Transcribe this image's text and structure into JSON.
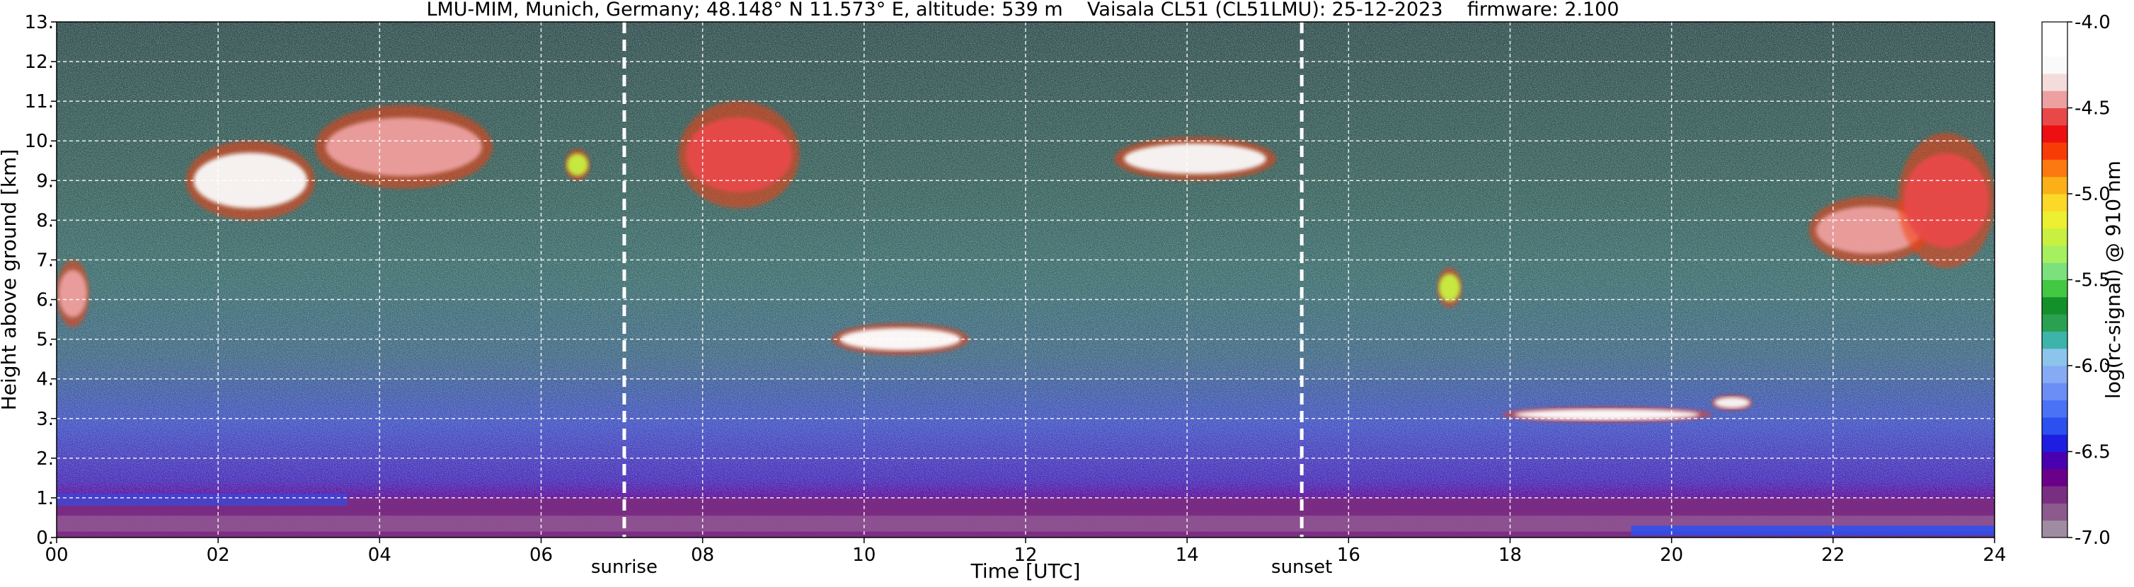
{
  "chart_data": {
    "type": "heatmap",
    "title": "LMU-MIM, Munich, Germany; 48.148° N 11.573° E, altitude: 539 m    Vaisala CL51 (CL51LMU): 25-12-2023    firmware: 2.100",
    "xlabel": "Time [UTC]",
    "ylabel": "Height above ground [km]",
    "xlim": [
      0,
      24
    ],
    "ylim": [
      0,
      13
    ],
    "x_ticks": [
      "00",
      "02",
      "04",
      "06",
      "08",
      "10",
      "12",
      "14",
      "16",
      "18",
      "20",
      "22",
      "24"
    ],
    "y_ticks": [
      "0.",
      "1.",
      "2.",
      "3.",
      "4.",
      "5.",
      "6.",
      "7.",
      "8.",
      "9.",
      "10.",
      "11.",
      "12.",
      "13."
    ],
    "grid": true,
    "vlines": [
      {
        "label": "sunrise",
        "x": 7.03
      },
      {
        "label": "sunset",
        "x": 15.42
      }
    ],
    "colorbar": {
      "label": "log(rc-signal) @ 910 nm",
      "range": [
        -7.0,
        -4.0
      ],
      "ticks": [
        "-4.0",
        "-4.5",
        "-5.0",
        "-5.5",
        "-6.0",
        "-6.5",
        "-7.0"
      ],
      "colors": [
        "#a08ca0",
        "#8c5a8c",
        "#7a2e82",
        "#6a008a",
        "#4a00b0",
        "#1e1ee0",
        "#2a50f0",
        "#4a72f4",
        "#6a8ef6",
        "#86aaf4",
        "#8cc4ec",
        "#3cb4aa",
        "#2aa050",
        "#14902a",
        "#42c842",
        "#7ce07c",
        "#a6f060",
        "#c8f040",
        "#ecf030",
        "#fcd828",
        "#fcb018",
        "#fc7810",
        "#f83c08",
        "#ee1010",
        "#e84848",
        "#eca0a0",
        "#f4dcdc",
        "#fafafa",
        "#ffffff",
        "#ffffff"
      ]
    },
    "layers": [
      {
        "feature": "aerosol boundary layer",
        "start": 0,
        "end": 24,
        "base_km": 0.0,
        "top_km": 1.0,
        "log_signal": -6.8
      },
      {
        "feature": "cloud",
        "start": 0.0,
        "end": 0.4,
        "base_km": 5.3,
        "top_km": 7.0,
        "log_signal": -4.5
      },
      {
        "feature": "cloud",
        "start": 1.6,
        "end": 3.2,
        "base_km": 8.0,
        "top_km": 10.0,
        "log_signal": -4.3
      },
      {
        "feature": "cloud",
        "start": 3.2,
        "end": 5.4,
        "base_km": 8.8,
        "top_km": 10.9,
        "log_signal": -4.4
      },
      {
        "feature": "cloud",
        "start": 6.3,
        "end": 6.6,
        "base_km": 9.0,
        "top_km": 9.8,
        "log_signal": -5.3
      },
      {
        "feature": "cloud",
        "start": 7.7,
        "end": 9.2,
        "base_km": 8.3,
        "top_km": 11.0,
        "log_signal": -4.6
      },
      {
        "feature": "cloud",
        "start": 9.6,
        "end": 11.3,
        "base_km": 4.6,
        "top_km": 5.4,
        "log_signal": -4.1
      },
      {
        "feature": "cloud",
        "start": 13.1,
        "end": 15.1,
        "base_km": 9.0,
        "top_km": 10.1,
        "log_signal": -4.2
      },
      {
        "feature": "cloud",
        "start": 17.1,
        "end": 17.4,
        "base_km": 5.8,
        "top_km": 6.8,
        "log_signal": -5.3
      },
      {
        "feature": "cloud",
        "start": 17.9,
        "end": 20.5,
        "base_km": 2.9,
        "top_km": 3.3,
        "log_signal": -4.1
      },
      {
        "feature": "cloud",
        "start": 20.5,
        "end": 21.0,
        "base_km": 3.2,
        "top_km": 3.6,
        "log_signal": -4.2
      },
      {
        "feature": "cloud",
        "start": 21.7,
        "end": 23.2,
        "base_km": 6.9,
        "top_km": 8.6,
        "log_signal": -4.4
      },
      {
        "feature": "cloud",
        "start": 22.8,
        "end": 24.0,
        "base_km": 6.8,
        "top_km": 10.2,
        "log_signal": -4.6
      }
    ]
  }
}
